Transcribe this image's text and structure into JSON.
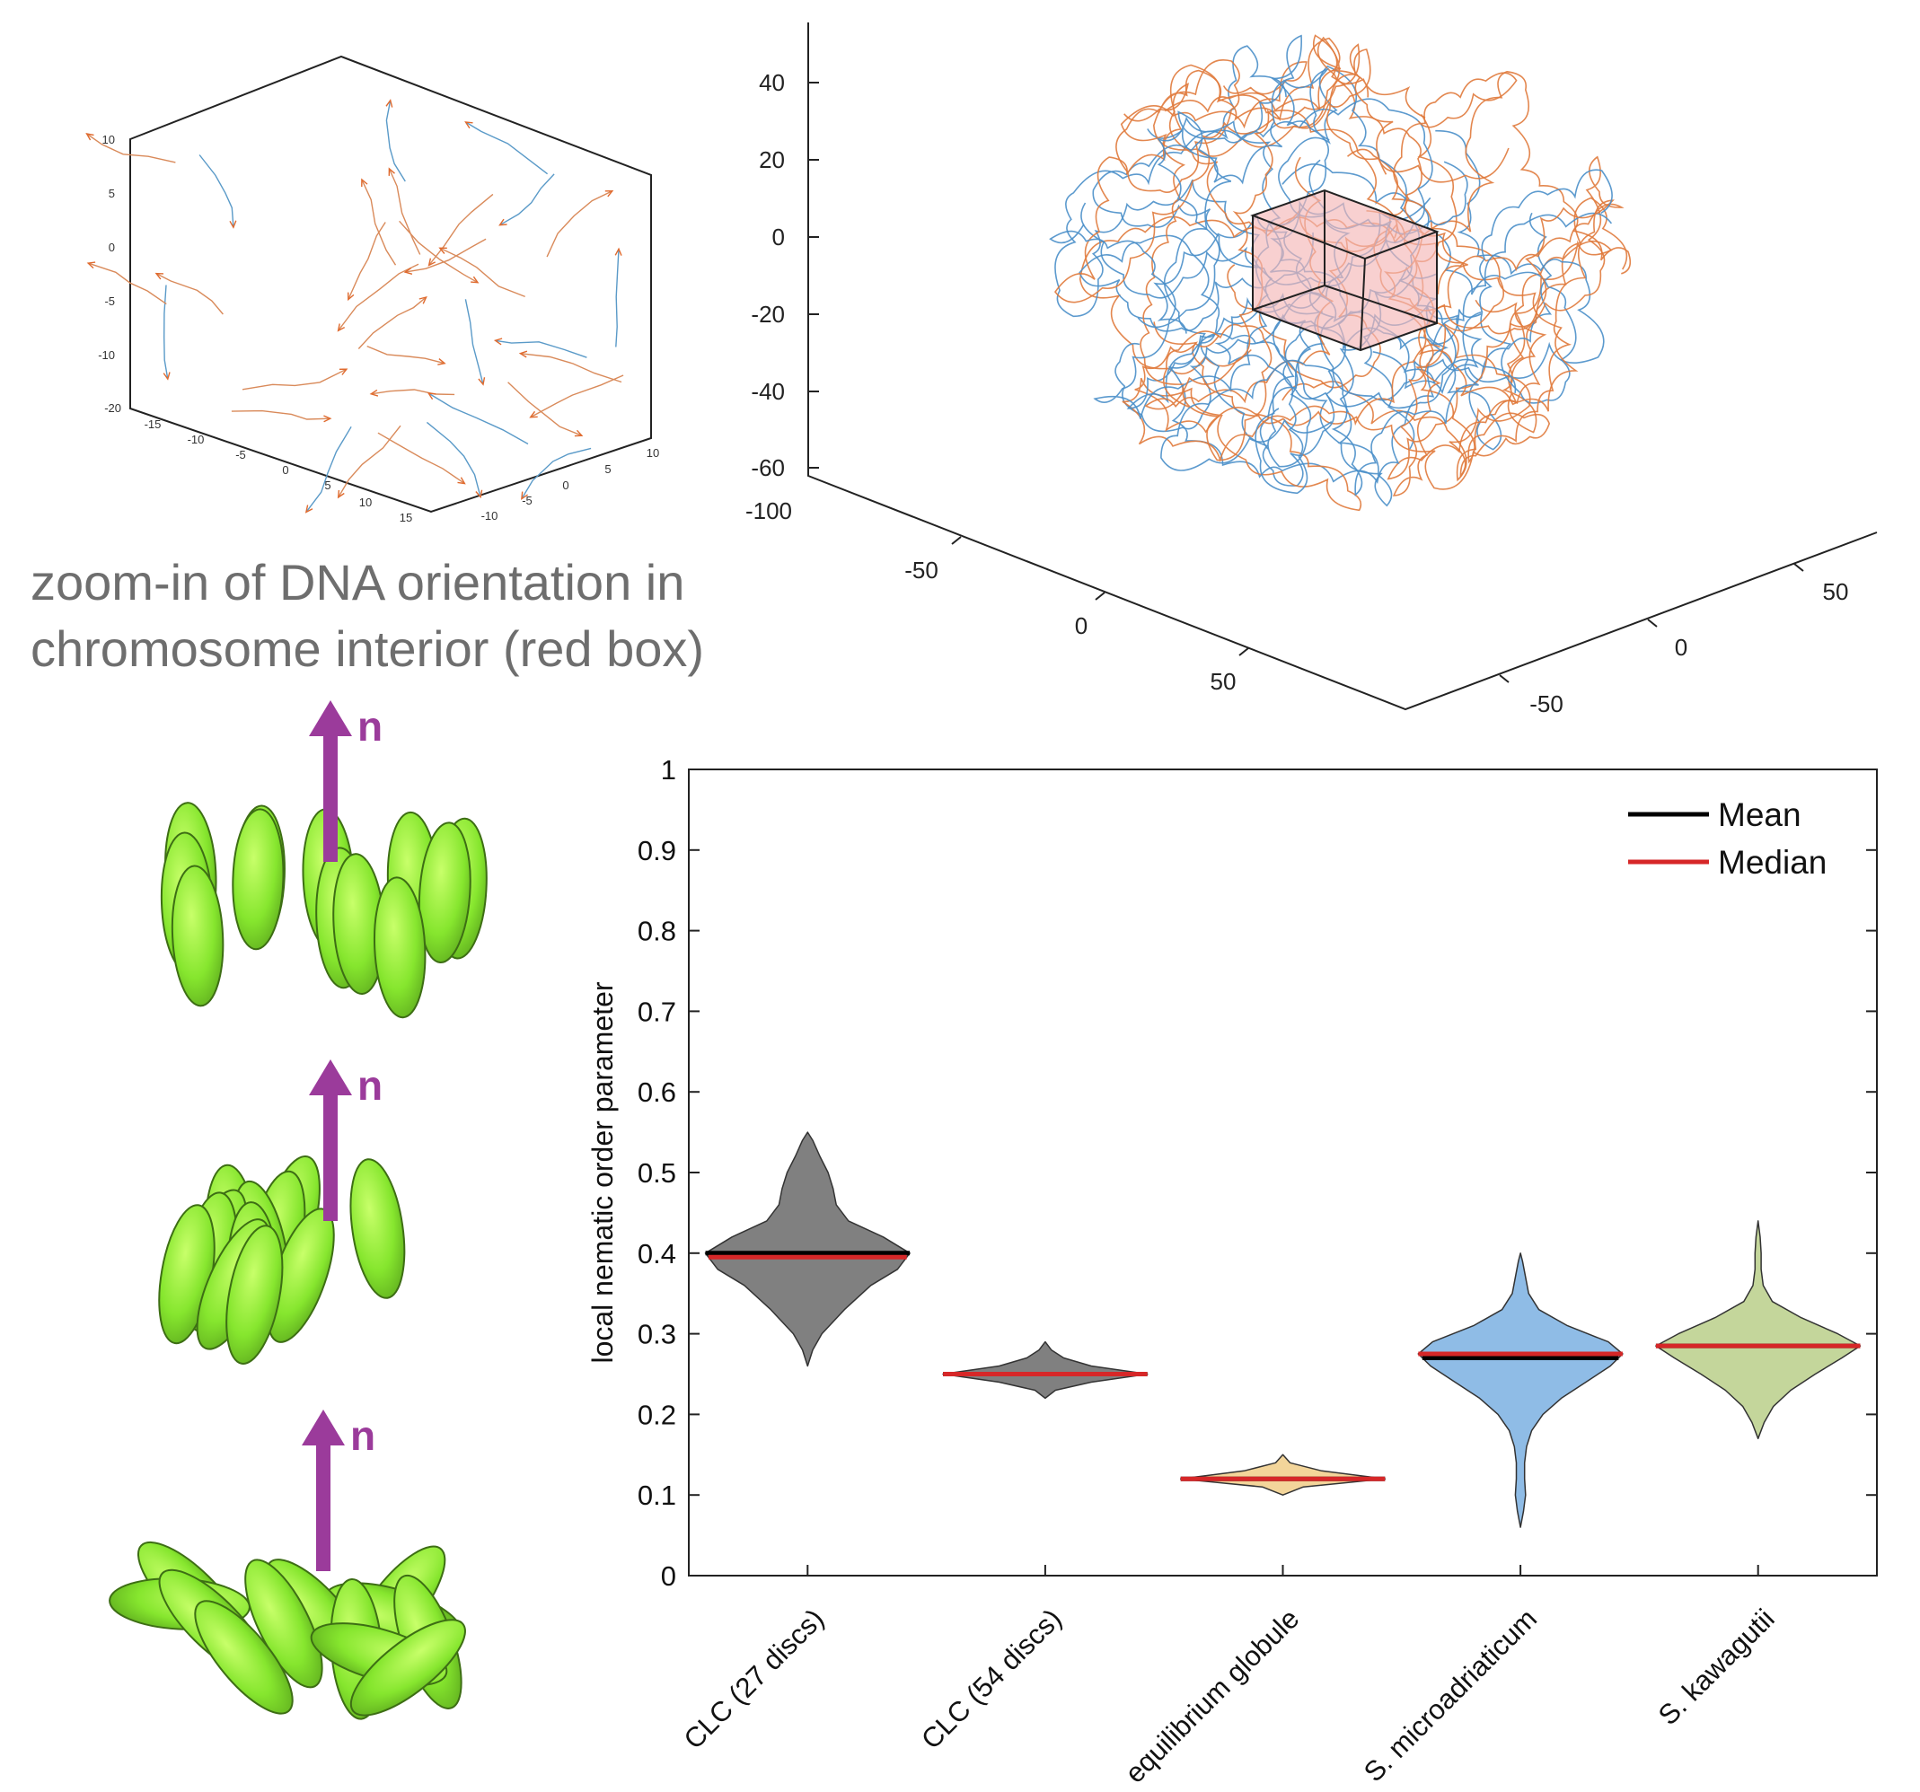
{
  "caption": {
    "line1": "zoom-in of DNA orientation in",
    "line2": "chromosome interior (red box)"
  },
  "zoom_plot": {
    "z_ticks": [
      "10",
      "5",
      "0",
      "-5",
      "-10",
      "-20"
    ],
    "x_ticks": [
      "-15",
      "-10",
      "-5",
      "0",
      "5",
      "10",
      "15"
    ],
    "y_ticks": [
      "-10",
      "-5",
      "0",
      "5",
      "10"
    ]
  },
  "chromosome_plot": {
    "z_ticks": [
      "40",
      "20",
      "0",
      "-20",
      "-40",
      "-60",
      "-100"
    ],
    "x_ticks": [
      "-50",
      "0",
      "50"
    ],
    "y_ticks": [
      "-50",
      "0",
      "50"
    ],
    "colors": {
      "strand_a": "#4a8fc9",
      "strand_b": "#e07a3c",
      "box_fill": "#f7c6c6"
    }
  },
  "director_label": "n",
  "chart_data": {
    "type": "violin",
    "categories": [
      "CLC (27 discs)",
      "CLC (54 discs)",
      "equilibrium globule",
      "S. microadriaticum",
      "S. kawagutii"
    ],
    "ylabel": "local nematic order parameter",
    "ylim": [
      0,
      1
    ],
    "y_ticks": [
      "0",
      "0.1",
      "0.2",
      "0.3",
      "0.4",
      "0.5",
      "0.6",
      "0.7",
      "0.8",
      "0.9",
      "1"
    ],
    "legend": {
      "position": "top-right",
      "entries": [
        {
          "label": "Mean",
          "color": "#000000"
        },
        {
          "label": "Median",
          "color": "#d62728"
        }
      ]
    },
    "series": [
      {
        "category": "CLC (27 discs)",
        "color": "#808080",
        "mean": 0.4,
        "median": 0.395,
        "min": 0.26,
        "max": 0.55,
        "profile": [
          [
            0.26,
            0.0
          ],
          [
            0.28,
            0.05
          ],
          [
            0.3,
            0.14
          ],
          [
            0.33,
            0.36
          ],
          [
            0.36,
            0.62
          ],
          [
            0.38,
            0.88
          ],
          [
            0.4,
            1.0
          ],
          [
            0.42,
            0.74
          ],
          [
            0.44,
            0.4
          ],
          [
            0.46,
            0.28
          ],
          [
            0.48,
            0.25
          ],
          [
            0.5,
            0.2
          ],
          [
            0.52,
            0.12
          ],
          [
            0.54,
            0.05
          ],
          [
            0.55,
            0.0
          ]
        ]
      },
      {
        "category": "CLC (54 discs)",
        "color": "#808080",
        "mean": 0.25,
        "median": 0.25,
        "min": 0.22,
        "max": 0.29,
        "profile": [
          [
            0.22,
            0.0
          ],
          [
            0.23,
            0.1
          ],
          [
            0.24,
            0.45
          ],
          [
            0.25,
            1.0
          ],
          [
            0.26,
            0.45
          ],
          [
            0.27,
            0.18
          ],
          [
            0.28,
            0.06
          ],
          [
            0.29,
            0.0
          ]
        ]
      },
      {
        "category": "equilibrium globule",
        "color": "#f3d59a",
        "mean": 0.12,
        "median": 0.12,
        "min": 0.1,
        "max": 0.15,
        "profile": [
          [
            0.1,
            0.0
          ],
          [
            0.11,
            0.2
          ],
          [
            0.12,
            1.0
          ],
          [
            0.13,
            0.38
          ],
          [
            0.14,
            0.07
          ],
          [
            0.15,
            0.0
          ]
        ]
      },
      {
        "category": "S. microadriaticum",
        "color": "#8fbce6",
        "mean": 0.27,
        "median": 0.275,
        "min": 0.06,
        "max": 0.4,
        "profile": [
          [
            0.06,
            0.0
          ],
          [
            0.08,
            0.03
          ],
          [
            0.1,
            0.05
          ],
          [
            0.12,
            0.04
          ],
          [
            0.14,
            0.04
          ],
          [
            0.16,
            0.06
          ],
          [
            0.18,
            0.11
          ],
          [
            0.2,
            0.22
          ],
          [
            0.22,
            0.4
          ],
          [
            0.24,
            0.64
          ],
          [
            0.26,
            0.88
          ],
          [
            0.275,
            1.0
          ],
          [
            0.29,
            0.86
          ],
          [
            0.31,
            0.46
          ],
          [
            0.33,
            0.18
          ],
          [
            0.35,
            0.08
          ],
          [
            0.37,
            0.05
          ],
          [
            0.39,
            0.02
          ],
          [
            0.4,
            0.0
          ]
        ]
      },
      {
        "category": "S. kawagutii",
        "color": "#c4d69b",
        "mean": 0.285,
        "median": 0.285,
        "min": 0.17,
        "max": 0.44,
        "profile": [
          [
            0.17,
            0.0
          ],
          [
            0.19,
            0.06
          ],
          [
            0.21,
            0.15
          ],
          [
            0.23,
            0.32
          ],
          [
            0.25,
            0.56
          ],
          [
            0.27,
            0.82
          ],
          [
            0.285,
            1.0
          ],
          [
            0.3,
            0.78
          ],
          [
            0.32,
            0.42
          ],
          [
            0.34,
            0.14
          ],
          [
            0.36,
            0.05
          ],
          [
            0.38,
            0.03
          ],
          [
            0.4,
            0.03
          ],
          [
            0.42,
            0.02
          ],
          [
            0.44,
            0.0
          ]
        ]
      }
    ]
  }
}
